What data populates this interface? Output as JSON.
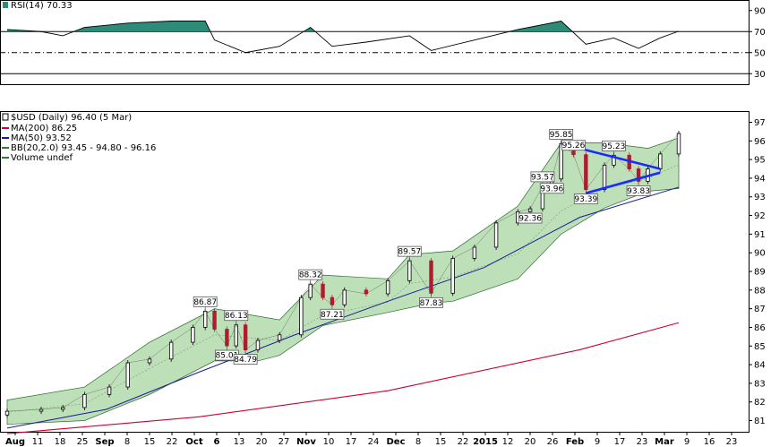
{
  "rsi_panel": {
    "label": "RSI(14) 70.33",
    "ticks": [
      90,
      70,
      50,
      30
    ],
    "ylim": [
      20,
      100
    ]
  },
  "price_panel": {
    "title": "$USD (Daily) 96.40 (5 Mar)",
    "legend": [
      {
        "label": "MA(200) 86.25",
        "color": "#cc0033"
      },
      {
        "label": "MA(50) 93.52",
        "color": "#1a1a99"
      },
      {
        "label": "BB(20,2.0) 93.45 - 94.80 - 96.16",
        "color": "#2e7d32"
      },
      {
        "label": "Volume undef",
        "color": "#2e7d32"
      }
    ],
    "ticks": [
      97,
      96,
      95,
      94,
      93,
      92,
      91,
      90,
      89,
      88,
      87,
      86,
      85,
      84,
      83,
      82,
      81
    ],
    "ylim": [
      80.4,
      97.6
    ]
  },
  "x_axis": {
    "labels": [
      {
        "text": "Aug",
        "bold": true
      },
      {
        "text": "11",
        "bold": false
      },
      {
        "text": "18",
        "bold": false
      },
      {
        "text": "25",
        "bold": false
      },
      {
        "text": "Sep",
        "bold": true
      },
      {
        "text": "8",
        "bold": false
      },
      {
        "text": "15",
        "bold": false
      },
      {
        "text": "22",
        "bold": false
      },
      {
        "text": "Oct",
        "bold": true
      },
      {
        "text": "6",
        "bold": true
      },
      {
        "text": "13",
        "bold": false
      },
      {
        "text": "20",
        "bold": false
      },
      {
        "text": "27",
        "bold": false
      },
      {
        "text": "Nov",
        "bold": true
      },
      {
        "text": "10",
        "bold": false
      },
      {
        "text": "17",
        "bold": false
      },
      {
        "text": "24",
        "bold": false
      },
      {
        "text": "Dec",
        "bold": true
      },
      {
        "text": "8",
        "bold": false
      },
      {
        "text": "15",
        "bold": false
      },
      {
        "text": "22",
        "bold": false
      },
      {
        "text": "2015",
        "bold": true
      },
      {
        "text": "12",
        "bold": false
      },
      {
        "text": "20",
        "bold": false
      },
      {
        "text": "26",
        "bold": false
      },
      {
        "text": "Feb",
        "bold": true
      },
      {
        "text": "9",
        "bold": false
      },
      {
        "text": "17",
        "bold": false
      },
      {
        "text": "23",
        "bold": false
      },
      {
        "text": "Mar",
        "bold": true
      },
      {
        "text": "9",
        "bold": false
      },
      {
        "text": "16",
        "bold": false
      },
      {
        "text": "23",
        "bold": false
      }
    ]
  },
  "colors": {
    "up": "#000000",
    "down": "#b01c2e",
    "bb_fill": "#a8d5a0",
    "bb_line": "#2e6b2e",
    "ma200": "#cc0033",
    "ma50": "#1a1a99",
    "triangle": "#1a2bff",
    "rsi_fill": "#2e8b78",
    "rsi_line": "#000000",
    "grid": "#000000"
  },
  "chart_data": {
    "type": "candlestick",
    "series_names": [
      "$USD",
      "MA(200)",
      "MA(50)",
      "BB(20,2.0)",
      "RSI(14)"
    ],
    "price_points": [
      {
        "date": "2014-07-31",
        "close": 81.5
      },
      {
        "date": "2014-08-11",
        "close": 81.6
      },
      {
        "date": "2014-08-18",
        "close": 81.7
      },
      {
        "date": "2014-08-25",
        "close": 82.4
      },
      {
        "date": "2014-09-02",
        "close": 82.8
      },
      {
        "date": "2014-09-08",
        "close": 84.1
      },
      {
        "date": "2014-09-15",
        "close": 84.3
      },
      {
        "date": "2014-09-22",
        "close": 85.2
      },
      {
        "date": "2014-09-29",
        "close": 86.0
      },
      {
        "date": "2014-10-03",
        "close": 86.87
      },
      {
        "date": "2014-10-06",
        "close": 85.9
      },
      {
        "date": "2014-10-10",
        "close": 85.01
      },
      {
        "date": "2014-10-13",
        "close": 86.13
      },
      {
        "date": "2014-10-16",
        "close": 84.79
      },
      {
        "date": "2014-10-20",
        "close": 85.3
      },
      {
        "date": "2014-10-27",
        "close": 85.6
      },
      {
        "date": "2014-11-03",
        "close": 87.6
      },
      {
        "date": "2014-11-06",
        "close": 88.32
      },
      {
        "date": "2014-11-10",
        "close": 87.6
      },
      {
        "date": "2014-11-13",
        "close": 87.21
      },
      {
        "date": "2014-11-17",
        "close": 88.0
      },
      {
        "date": "2014-11-24",
        "close": 87.8
      },
      {
        "date": "2014-12-01",
        "close": 88.5
      },
      {
        "date": "2014-12-08",
        "close": 89.57
      },
      {
        "date": "2014-12-15",
        "close": 87.83
      },
      {
        "date": "2014-12-22",
        "close": 89.7
      },
      {
        "date": "2014-12-29",
        "close": 90.3
      },
      {
        "date": "2015-01-05",
        "close": 91.6
      },
      {
        "date": "2015-01-12",
        "close": 92.2
      },
      {
        "date": "2015-01-16",
        "close": 92.36
      },
      {
        "date": "2015-01-20",
        "close": 93.57
      },
      {
        "date": "2015-01-23",
        "close": 93.96
      },
      {
        "date": "2015-01-26",
        "close": 95.85
      },
      {
        "date": "2015-01-30",
        "close": 95.26
      },
      {
        "date": "2015-02-03",
        "close": 93.39
      },
      {
        "date": "2015-02-09",
        "close": 94.7
      },
      {
        "date": "2015-02-12",
        "close": 95.23
      },
      {
        "date": "2015-02-17",
        "close": 94.5
      },
      {
        "date": "2015-02-20",
        "close": 93.83
      },
      {
        "date": "2015-02-23",
        "close": 94.5
      },
      {
        "date": "2015-02-27",
        "close": 95.3
      },
      {
        "date": "2015-03-05",
        "close": 96.4
      }
    ],
    "ma200": [
      {
        "date": "2014-07-31",
        "value": 80.3
      },
      {
        "date": "2014-10-01",
        "value": 81.2
      },
      {
        "date": "2014-12-01",
        "value": 82.6
      },
      {
        "date": "2015-02-01",
        "value": 84.8
      },
      {
        "date": "2015-03-05",
        "value": 86.25
      }
    ],
    "ma50": [
      {
        "date": "2014-07-31",
        "value": 80.6
      },
      {
        "date": "2014-09-01",
        "value": 81.6
      },
      {
        "date": "2014-10-01",
        "value": 83.6
      },
      {
        "date": "2014-11-01",
        "value": 85.6
      },
      {
        "date": "2014-12-01",
        "value": 87.4
      },
      {
        "date": "2015-01-01",
        "value": 89.2
      },
      {
        "date": "2015-02-01",
        "value": 91.9
      },
      {
        "date": "2015-03-05",
        "value": 93.52
      }
    ],
    "bb_upper": [
      {
        "date": "2014-07-31",
        "value": 82.1
      },
      {
        "date": "2014-08-25",
        "value": 82.8
      },
      {
        "date": "2014-09-15",
        "value": 85.2
      },
      {
        "date": "2014-10-06",
        "value": 87.0
      },
      {
        "date": "2014-10-27",
        "value": 86.4
      },
      {
        "date": "2014-11-10",
        "value": 88.8
      },
      {
        "date": "2014-12-01",
        "value": 88.6
      },
      {
        "date": "2014-12-08",
        "value": 89.9
      },
      {
        "date": "2014-12-22",
        "value": 90.1
      },
      {
        "date": "2015-01-12",
        "value": 92.5
      },
      {
        "date": "2015-01-26",
        "value": 95.9
      },
      {
        "date": "2015-02-09",
        "value": 95.9
      },
      {
        "date": "2015-02-23",
        "value": 95.6
      },
      {
        "date": "2015-03-05",
        "value": 96.16
      }
    ],
    "bb_lower": [
      {
        "date": "2014-07-31",
        "value": 80.8
      },
      {
        "date": "2014-08-25",
        "value": 81.0
      },
      {
        "date": "2014-09-15",
        "value": 82.4
      },
      {
        "date": "2014-10-06",
        "value": 84.2
      },
      {
        "date": "2014-10-20",
        "value": 84.2
      },
      {
        "date": "2014-10-27",
        "value": 84.5
      },
      {
        "date": "2014-11-10",
        "value": 86.1
      },
      {
        "date": "2014-12-01",
        "value": 86.8
      },
      {
        "date": "2014-12-15",
        "value": 87.3
      },
      {
        "date": "2014-12-22",
        "value": 87.4
      },
      {
        "date": "2015-01-12",
        "value": 88.6
      },
      {
        "date": "2015-01-26",
        "value": 91.0
      },
      {
        "date": "2015-02-09",
        "value": 92.4
      },
      {
        "date": "2015-02-23",
        "value": 93.3
      },
      {
        "date": "2015-03-05",
        "value": 93.45
      }
    ],
    "rsi": [
      {
        "date": "2014-07-31",
        "value": 72
      },
      {
        "date": "2014-08-11",
        "value": 70
      },
      {
        "date": "2014-08-18",
        "value": 66
      },
      {
        "date": "2014-08-25",
        "value": 74
      },
      {
        "date": "2014-09-08",
        "value": 78
      },
      {
        "date": "2014-09-22",
        "value": 80
      },
      {
        "date": "2014-10-03",
        "value": 80
      },
      {
        "date": "2014-10-06",
        "value": 62
      },
      {
        "date": "2014-10-16",
        "value": 50
      },
      {
        "date": "2014-10-27",
        "value": 56
      },
      {
        "date": "2014-11-06",
        "value": 74
      },
      {
        "date": "2014-11-13",
        "value": 56
      },
      {
        "date": "2014-11-24",
        "value": 60
      },
      {
        "date": "2014-12-08",
        "value": 66
      },
      {
        "date": "2014-12-15",
        "value": 52
      },
      {
        "date": "2014-12-29",
        "value": 62
      },
      {
        "date": "2015-01-12",
        "value": 72
      },
      {
        "date": "2015-01-26",
        "value": 80
      },
      {
        "date": "2015-02-03",
        "value": 58
      },
      {
        "date": "2015-02-12",
        "value": 64
      },
      {
        "date": "2015-02-20",
        "value": 54
      },
      {
        "date": "2015-02-27",
        "value": 64
      },
      {
        "date": "2015-03-05",
        "value": 70.33
      }
    ],
    "rsi_reference_lines": [
      70,
      50,
      30
    ],
    "annotations": [
      {
        "text": "86.87",
        "date": "2014-10-03",
        "value": 86.87,
        "pos": "above"
      },
      {
        "text": "86.13",
        "date": "2014-10-13",
        "value": 86.13,
        "pos": "above"
      },
      {
        "text": "85.01",
        "date": "2014-10-10",
        "value": 85.01,
        "pos": "below"
      },
      {
        "text": "84.79",
        "date": "2014-10-16",
        "value": 84.79,
        "pos": "below"
      },
      {
        "text": "88.32",
        "date": "2014-11-06",
        "value": 88.32,
        "pos": "above"
      },
      {
        "text": "87.21",
        "date": "2014-11-13",
        "value": 87.21,
        "pos": "below"
      },
      {
        "text": "89.57",
        "date": "2014-12-08",
        "value": 89.57,
        "pos": "above"
      },
      {
        "text": "87.83",
        "date": "2014-12-15",
        "value": 87.83,
        "pos": "below"
      },
      {
        "text": "93.57",
        "date": "2015-01-20",
        "value": 93.57,
        "pos": "above"
      },
      {
        "text": "92.36",
        "date": "2015-01-16",
        "value": 92.36,
        "pos": "below"
      },
      {
        "text": "93.96",
        "date": "2015-01-23",
        "value": 93.96,
        "pos": "below"
      },
      {
        "text": "95.85",
        "date": "2015-01-26",
        "value": 95.85,
        "pos": "above"
      },
      {
        "text": "95.26",
        "date": "2015-01-30",
        "value": 95.26,
        "pos": "above"
      },
      {
        "text": "93.39",
        "date": "2015-02-03",
        "value": 93.39,
        "pos": "below"
      },
      {
        "text": "95.23",
        "date": "2015-02-12",
        "value": 95.23,
        "pos": "above"
      },
      {
        "text": "93.83",
        "date": "2015-02-20",
        "value": 93.83,
        "pos": "below"
      }
    ],
    "triangle": {
      "upper": [
        {
          "date": "2015-01-26",
          "value": 95.85
        },
        {
          "date": "2015-02-27",
          "value": 94.5
        }
      ],
      "lower": [
        {
          "date": "2015-02-03",
          "value": 93.2
        },
        {
          "date": "2015-02-27",
          "value": 94.3
        }
      ]
    }
  }
}
